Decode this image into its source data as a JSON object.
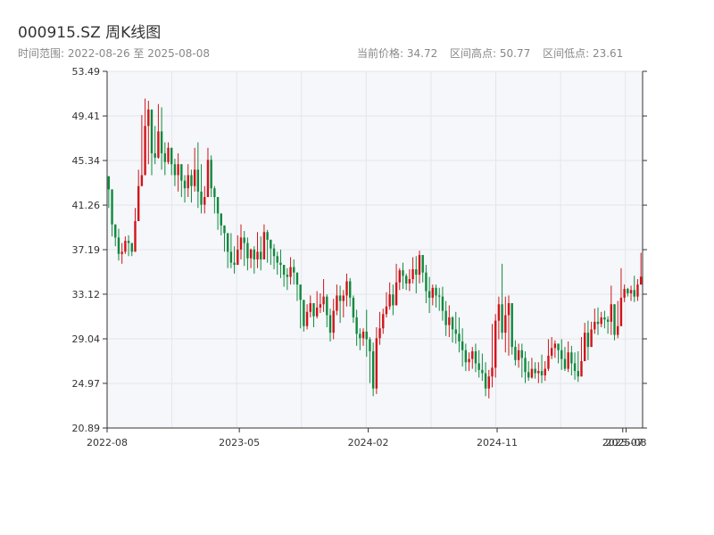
{
  "title": "000915.SZ 周K线图",
  "meta": {
    "range": "时间范围: 2022-08-26 至 2025-08-08",
    "current_price": "当前价格: 34.72",
    "high": "区间高点: 50.77",
    "low": "区间低点: 23.61"
  },
  "colors": {
    "up": "#d0151a",
    "down": "#10893e",
    "plot_bg": "#f5f7fa",
    "grid": "#e3e6ea",
    "axis": "#333333"
  },
  "chart_data": {
    "type": "candlestick",
    "title": "000915.SZ 周K线图",
    "xlabel": "",
    "ylabel": "",
    "ylim": [
      20.89,
      53.49
    ],
    "y_ticks": [
      "53.49",
      "49.41",
      "45.34",
      "41.26",
      "37.19",
      "33.12",
      "29.04",
      "24.97",
      "20.89"
    ],
    "x_ticks": [
      "2022-08",
      "2023-05",
      "2024-02",
      "2024-11",
      "2025-07",
      "2025-08"
    ],
    "x_tick_weeks": [
      0,
      40,
      79,
      118,
      156,
      157
    ],
    "close": [
      42.7,
      39.5,
      38.3,
      36.8,
      37.0,
      38.0,
      37.8,
      37.0,
      39.8,
      43.0,
      44.0,
      48.5,
      50.0,
      46.0,
      45.6,
      48.0,
      46.0,
      45.2,
      46.5,
      45.0,
      44.0,
      45.0,
      43.5,
      42.8,
      44.0,
      43.0,
      44.5,
      42.5,
      41.3,
      42.0,
      45.4,
      42.8,
      42.0,
      40.5,
      39.4,
      38.7,
      37.0,
      36.0,
      35.8,
      37.2,
      38.3,
      37.8,
      36.4,
      37.2,
      36.3,
      37.0,
      36.3,
      38.8,
      38.1,
      37.3,
      36.6,
      36.0,
      35.8,
      34.9,
      34.7,
      35.6,
      35.1,
      34.0,
      32.6,
      30.2,
      31.5,
      32.3,
      31.1,
      31.9,
      32.2,
      32.9,
      31.2,
      29.6,
      31.6,
      33.0,
      32.5,
      33.0,
      34.3,
      32.8,
      31.0,
      29.5,
      29.1,
      29.7,
      29.0,
      27.9,
      24.5,
      29.1,
      30.0,
      31.3,
      32.0,
      33.1,
      32.1,
      34.2,
      35.3,
      34.8,
      34.1,
      34.5,
      35.4,
      34.9,
      36.7,
      35.1,
      33.4,
      32.8,
      33.7,
      33.0,
      32.9,
      31.6,
      30.3,
      31.0,
      29.9,
      29.5,
      28.8,
      28.0,
      26.9,
      27.2,
      27.9,
      26.8,
      26.2,
      25.9,
      24.5,
      25.6,
      26.4,
      30.7,
      32.2,
      29.6,
      31.2,
      32.3,
      28.3,
      27.1,
      28.0,
      27.3,
      26.0,
      25.5,
      26.3,
      25.9,
      26.1,
      25.7,
      26.3,
      27.5,
      28.2,
      28.6,
      28.0,
      27.2,
      26.3,
      27.8,
      26.8,
      26.1,
      25.6,
      27.0,
      29.6,
      28.3,
      29.9,
      30.6,
      30.4,
      31.0,
      30.8,
      30.6,
      32.2,
      29.4,
      30.2,
      32.8,
      33.6,
      33.2,
      33.5,
      32.9,
      34.0,
      34.72
    ],
    "high": [
      42.8,
      41.5,
      39.5,
      39.1,
      37.8,
      38.4,
      38.5,
      37.8,
      41.0,
      44.5,
      49.5,
      51.0,
      50.8,
      48.0,
      48.5,
      50.5,
      50.2,
      47.0,
      47.0,
      46.0,
      45.5,
      46.0,
      45.0,
      44.0,
      45.0,
      44.5,
      46.5,
      47.0,
      45.0,
      43.0,
      46.5,
      45.8,
      43.0,
      42.0,
      40.5,
      39.2,
      37.5,
      38.7,
      37.5,
      38.5,
      39.5,
      38.9,
      38.3,
      37.3,
      37.5,
      38.8,
      38.4,
      39.5,
      39.0,
      38.1,
      37.7,
      37.0,
      37.2,
      35.5,
      35.5,
      36.5,
      36.3,
      34.7,
      33.5,
      32.5,
      32.2,
      33.0,
      32.3,
      33.4,
      33.2,
      34.5,
      33.1,
      31.8,
      32.7,
      34.0,
      33.9,
      33.5,
      35.0,
      34.6,
      33.0,
      31.7,
      30.0,
      30.0,
      31.7,
      29.2,
      28.7,
      30.1,
      31.5,
      31.8,
      33.3,
      34.2,
      34.0,
      35.9,
      35.5,
      36.0,
      35.0,
      35.4,
      36.5,
      36.6,
      37.1,
      36.7,
      35.8,
      34.7,
      34.0,
      34.0,
      33.7,
      33.8,
      32.5,
      32.1,
      31.1,
      31.5,
      31.0,
      30.0,
      28.6,
      27.8,
      28.3,
      28.6,
      28.0,
      27.7,
      26.9,
      26.2,
      30.4,
      31.3,
      32.9,
      35.9,
      32.9,
      33.0,
      30.5,
      28.9,
      28.6,
      28.6,
      27.9,
      27.0,
      27.3,
      26.9,
      26.9,
      27.6,
      27.0,
      29.0,
      29.2,
      28.9,
      28.3,
      29.0,
      28.3,
      28.8,
      28.4,
      27.8,
      27.9,
      29.2,
      30.5,
      30.7,
      30.6,
      31.8,
      31.9,
      31.5,
      31.6,
      31.1,
      33.9,
      31.3,
      32.5,
      35.5,
      34.0,
      33.7,
      33.9,
      34.8,
      34.5,
      36.9
    ],
    "low": [
      41.0,
      38.4,
      37.5,
      36.2,
      35.9,
      36.8,
      36.6,
      36.6,
      38.0,
      42.0,
      43.5,
      46.5,
      45.0,
      44.0,
      45.0,
      45.5,
      44.5,
      44.0,
      45.0,
      44.0,
      43.0,
      42.5,
      42.0,
      41.5,
      42.0,
      41.5,
      42.5,
      41.0,
      40.5,
      40.5,
      42.0,
      42.0,
      40.5,
      39.0,
      38.5,
      37.0,
      35.5,
      35.5,
      35.0,
      35.8,
      36.3,
      35.7,
      35.3,
      35.5,
      35.0,
      35.5,
      35.3,
      36.4,
      36.0,
      35.8,
      35.4,
      34.9,
      34.6,
      33.8,
      33.5,
      34.0,
      34.0,
      32.5,
      30.0,
      29.7,
      29.9,
      31.0,
      30.1,
      30.9,
      31.4,
      31.5,
      30.1,
      28.8,
      29.0,
      31.2,
      30.5,
      31.0,
      32.0,
      32.0,
      30.5,
      28.4,
      28.0,
      28.4,
      27.4,
      25.0,
      23.8,
      24.0,
      28.5,
      29.5,
      31.0,
      31.7,
      31.2,
      32.6,
      33.5,
      33.6,
      33.5,
      33.4,
      34.1,
      33.2,
      34.1,
      34.2,
      32.3,
      31.4,
      32.1,
      31.9,
      31.6,
      30.7,
      29.3,
      29.2,
      28.7,
      28.6,
      27.8,
      26.5,
      26.1,
      26.1,
      26.3,
      26.0,
      25.5,
      25.2,
      23.8,
      23.6,
      24.6,
      25.5,
      29.0,
      29.0,
      27.8,
      27.5,
      27.6,
      26.6,
      26.4,
      25.5,
      25.0,
      25.2,
      25.4,
      25.4,
      25.0,
      25.0,
      25.2,
      26.1,
      27.2,
      27.3,
      26.8,
      26.2,
      26.1,
      26.0,
      25.7,
      25.3,
      25.1,
      26.3,
      27.4,
      27.1,
      28.5,
      29.5,
      29.4,
      30.1,
      30.0,
      29.5,
      29.4,
      28.9,
      29.1,
      32.5,
      32.4,
      32.9,
      32.5,
      32.4,
      32.5,
      34.0
    ]
  }
}
